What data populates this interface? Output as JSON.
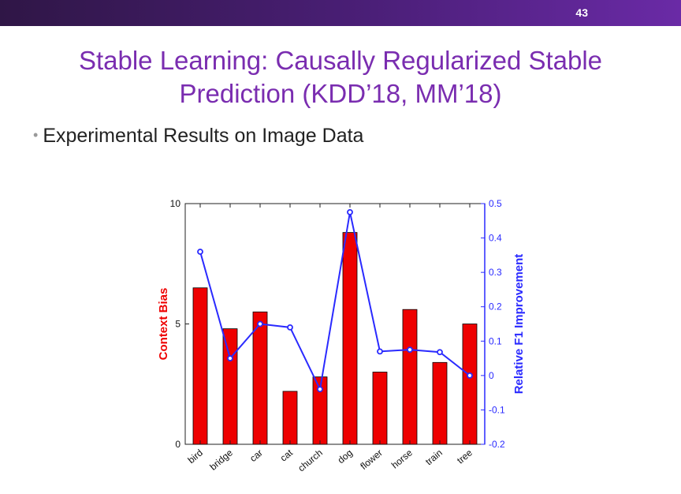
{
  "slide": {
    "number": "43",
    "title_line1": "Stable Learning: Causally Regularized Stable",
    "title_line2": "Prediction (KDD’18, MM’18)",
    "bullet": "Experimental Results on Image Data"
  },
  "colors": {
    "topbar": "#4b1f78",
    "title": "#7a2db0",
    "bar": "#ee0000",
    "line": "#2a2aff"
  },
  "chart_data": {
    "type": "bar",
    "categories": [
      "bird",
      "bridge",
      "car",
      "cat",
      "church",
      "dog",
      "flower",
      "horse",
      "train",
      "tree"
    ],
    "series": [
      {
        "name": "Context Bias",
        "type": "bar",
        "axis": "left",
        "values": [
          6.5,
          4.8,
          5.5,
          2.2,
          2.8,
          8.8,
          3.0,
          5.6,
          3.4,
          5.0
        ]
      },
      {
        "name": "Relative F1 Improvement",
        "type": "line",
        "axis": "right",
        "values": [
          0.36,
          0.05,
          0.15,
          0.14,
          -0.04,
          0.475,
          0.07,
          0.075,
          0.068,
          0.0
        ]
      }
    ],
    "y_left": {
      "label": "Context Bias",
      "ylim": [
        0,
        10
      ],
      "ticks": [
        "0",
        "5",
        "10"
      ]
    },
    "y_right": {
      "label": "Relative F1 Improvement",
      "ylim": [
        -0.2,
        0.5
      ],
      "ticks": [
        "-0.2",
        "-0.1",
        "0",
        "0.1",
        "0.2",
        "0.3",
        "0.4",
        "0.5"
      ]
    },
    "grid": false
  }
}
